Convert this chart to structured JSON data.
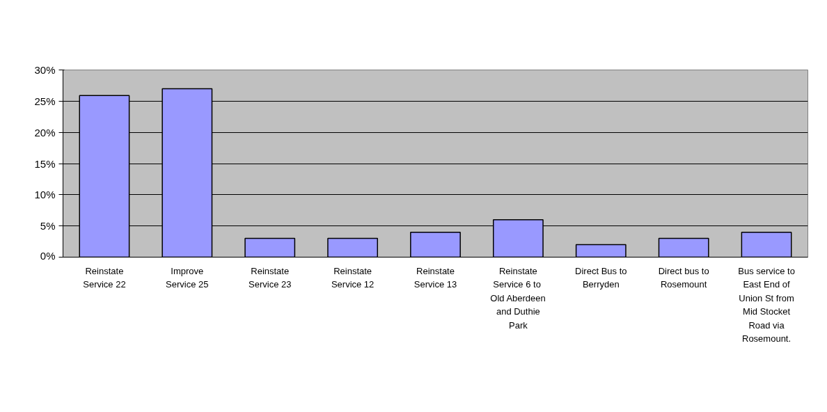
{
  "chart_data": {
    "type": "bar",
    "categories": [
      "Reinstate Service 22",
      "Improve Service 25",
      "Reinstate Service 23",
      "Reinstate Service 12",
      "Reinstate Service 13",
      "Reinstate Service 6  to Old Aberdeen and Duthie Park",
      "Direct Bus to Berryden",
      "Direct bus to Rosemount",
      "Bus service to East End of Union St from Mid Stocket Road via Rosemount."
    ],
    "values": [
      25.9,
      27,
      3,
      3,
      4,
      6,
      2,
      3,
      4
    ],
    "color": "#9999ff",
    "ylim": [
      0,
      30
    ],
    "yticks": [
      {
        "value": 0,
        "label": "0%"
      },
      {
        "value": 5,
        "label": "5%"
      },
      {
        "value": 10,
        "label": "10%"
      },
      {
        "value": 15,
        "label": "15%"
      },
      {
        "value": 20,
        "label": "20%"
      },
      {
        "value": 25,
        "label": "25%"
      },
      {
        "value": 30,
        "label": "30%"
      }
    ],
    "grid": "y"
  }
}
